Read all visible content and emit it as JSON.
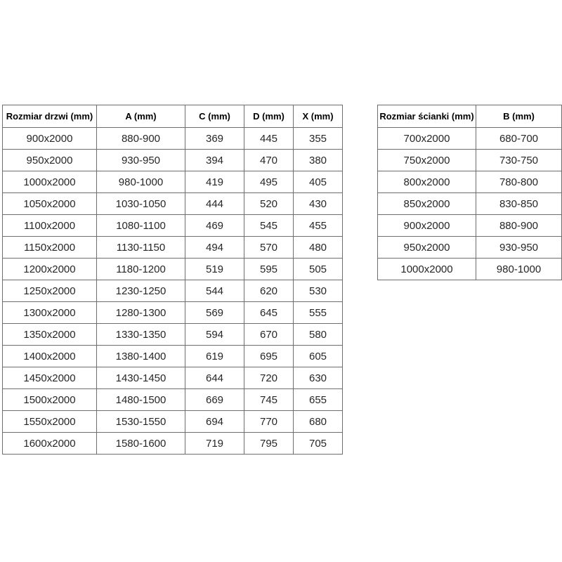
{
  "page": {
    "background": "#ffffff"
  },
  "colors": {
    "border": "#6e6e6e",
    "header_text": "#000000",
    "cell_text": "#262626"
  },
  "door_table": {
    "headers": [
      "Rozmiar drzwi (mm)",
      "A (mm)",
      "C (mm)",
      "D (mm)",
      "X (mm)"
    ],
    "rows": [
      [
        "900x2000",
        "880-900",
        "369",
        "445",
        "355"
      ],
      [
        "950x2000",
        "930-950",
        "394",
        "470",
        "380"
      ],
      [
        "1000x2000",
        "980-1000",
        "419",
        "495",
        "405"
      ],
      [
        "1050x2000",
        "1030-1050",
        "444",
        "520",
        "430"
      ],
      [
        "1100x2000",
        "1080-1100",
        "469",
        "545",
        "455"
      ],
      [
        "1150x2000",
        "1130-1150",
        "494",
        "570",
        "480"
      ],
      [
        "1200x2000",
        "1180-1200",
        "519",
        "595",
        "505"
      ],
      [
        "1250x2000",
        "1230-1250",
        "544",
        "620",
        "530"
      ],
      [
        "1300x2000",
        "1280-1300",
        "569",
        "645",
        "555"
      ],
      [
        "1350x2000",
        "1330-1350",
        "594",
        "670",
        "580"
      ],
      [
        "1400x2000",
        "1380-1400",
        "619",
        "695",
        "605"
      ],
      [
        "1450x2000",
        "1430-1450",
        "644",
        "720",
        "630"
      ],
      [
        "1500x2000",
        "1480-1500",
        "669",
        "745",
        "655"
      ],
      [
        "1550x2000",
        "1530-1550",
        "694",
        "770",
        "680"
      ],
      [
        "1600x2000",
        "1580-1600",
        "719",
        "795",
        "705"
      ]
    ]
  },
  "wall_table": {
    "headers": [
      "Rozmiar ścianki (mm)",
      "B (mm)"
    ],
    "rows": [
      [
        "700x2000",
        "680-700"
      ],
      [
        "750x2000",
        "730-750"
      ],
      [
        "800x2000",
        "780-800"
      ],
      [
        "850x2000",
        "830-850"
      ],
      [
        "900x2000",
        "880-900"
      ],
      [
        "950x2000",
        "930-950"
      ],
      [
        "1000x2000",
        "980-1000"
      ]
    ]
  }
}
